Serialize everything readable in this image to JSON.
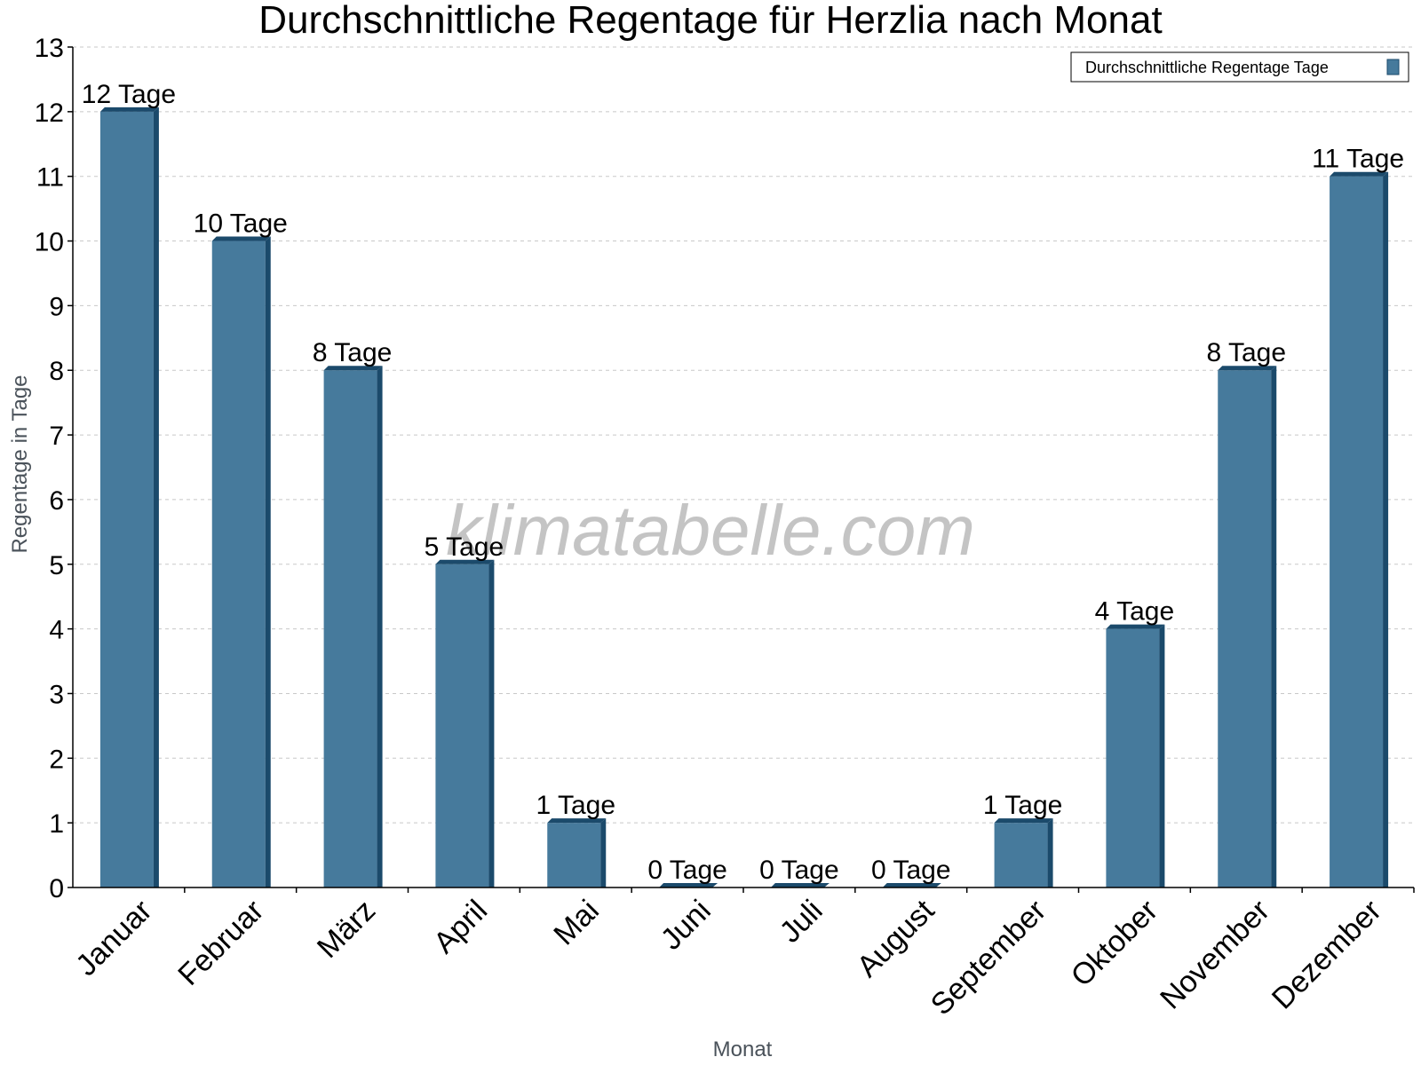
{
  "chart_data": {
    "type": "bar",
    "title": "Durchschnittliche Regentage für Herzlia nach Monat",
    "xlabel": "Monat",
    "ylabel": "Regentage in Tage",
    "categories": [
      "Januar",
      "Februar",
      "März",
      "April",
      "Mai",
      "Juni",
      "Juli",
      "August",
      "September",
      "Oktober",
      "November",
      "Dezember"
    ],
    "series": [
      {
        "name": "Durchschnittliche Regentage Tage",
        "values": [
          12,
          10,
          8,
          5,
          1,
          0,
          0,
          0,
          1,
          4,
          8,
          11
        ],
        "labels": [
          "12 Tage",
          "10 Tage",
          "8 Tage",
          "5 Tage",
          "1 Tage",
          "0 Tage",
          "0 Tage",
          "0 Tage",
          "1 Tage",
          "4 Tage",
          "8 Tage",
          "11 Tage"
        ],
        "color": "#467a9c",
        "side_color": "#1b4a6b"
      }
    ],
    "ylim": [
      0,
      13
    ],
    "yticks": [
      0,
      1,
      2,
      3,
      4,
      5,
      6,
      7,
      8,
      9,
      10,
      11,
      12,
      13
    ],
    "grid": true,
    "legend_position": "top-right",
    "watermark": "klimatabelle.com"
  }
}
